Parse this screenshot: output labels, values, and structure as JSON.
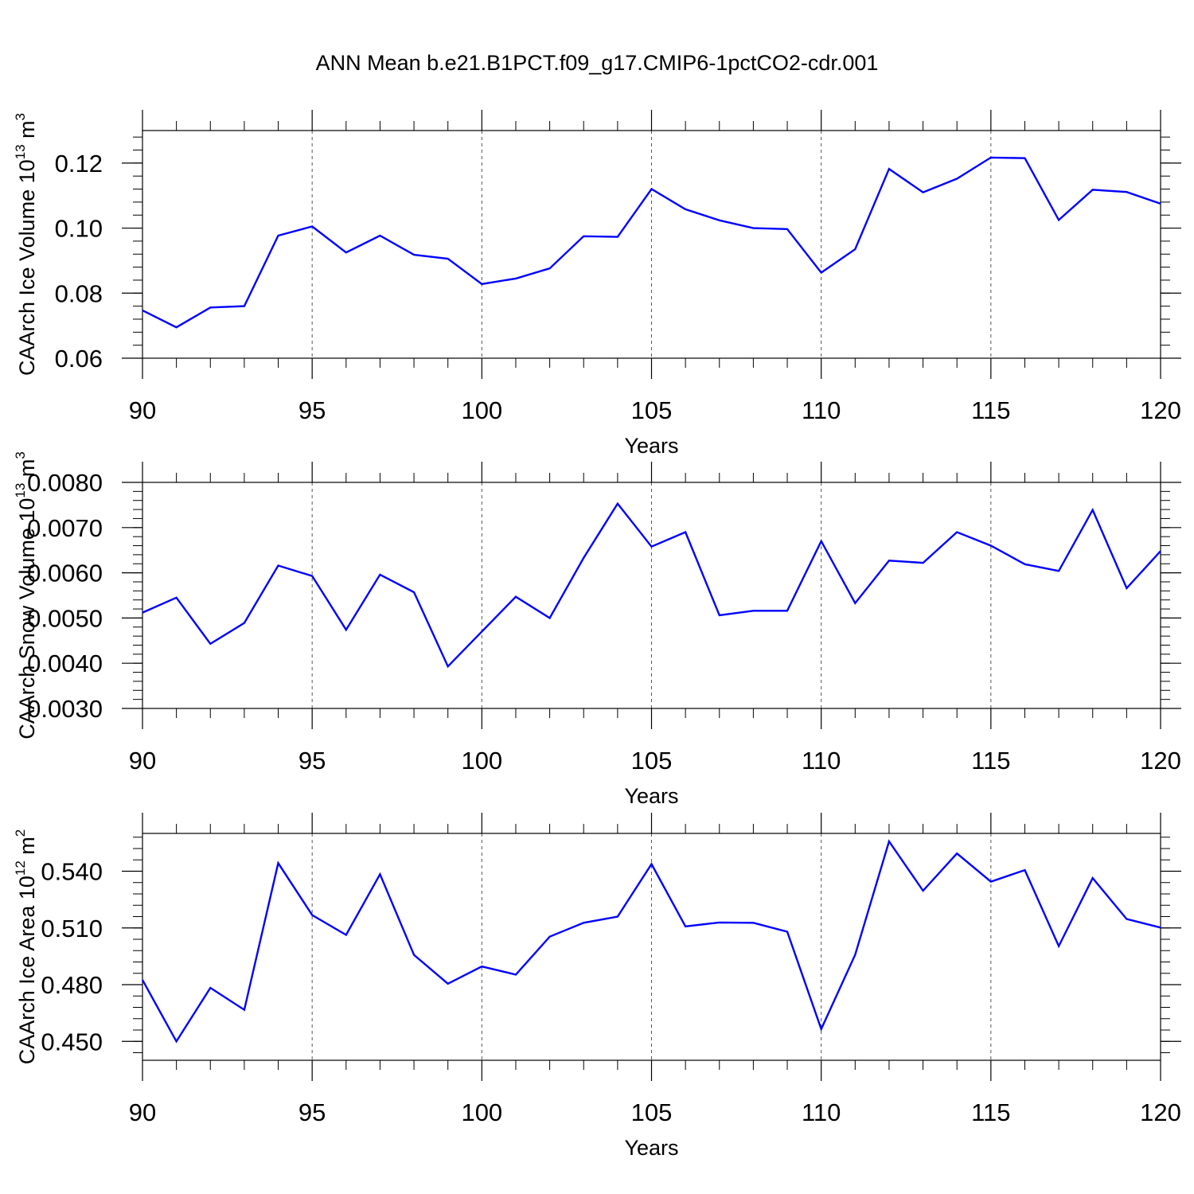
{
  "title": "ANN Mean b.e21.B1PCT.f09_g17.CMIP6-1pctCO2-cdr.001",
  "colors": {
    "line": "#0000ff",
    "axes": "#000000",
    "grid": "#555555"
  },
  "chart_data": [
    {
      "type": "line",
      "xlabel": "Years",
      "ylabel": {
        "text": "CAArch Ice Volume 10",
        "sup": "13",
        "unit": " m",
        "unit_sup": "3"
      },
      "xlim": [
        90,
        120
      ],
      "ylim": [
        0.06,
        0.13
      ],
      "xticks": [
        "90",
        "95",
        "100",
        "105",
        "110",
        "115",
        "120"
      ],
      "yticks": [
        "0.06",
        "0.08",
        "0.10",
        "0.12"
      ],
      "grid": "dashed vertical lines at major x ticks",
      "x": [
        90,
        91,
        92,
        93,
        94,
        95,
        96,
        97,
        98,
        99,
        100,
        101,
        102,
        103,
        104,
        105,
        106,
        107,
        108,
        109,
        110,
        111,
        112,
        113,
        114,
        115,
        116,
        117,
        118,
        119,
        120
      ],
      "series": [
        {
          "values": [
            0.0747,
            0.0695,
            0.0756,
            0.076,
            0.0977,
            0.1005,
            0.0925,
            0.0977,
            0.0918,
            0.0906,
            0.0828,
            0.0845,
            0.0876,
            0.0975,
            0.0973,
            0.112,
            0.1058,
            0.1024,
            0.1,
            0.0997,
            0.0863,
            0.0935,
            0.1182,
            0.111,
            0.1152,
            0.1217,
            0.1215,
            0.1025,
            0.1118,
            0.1111,
            0.1075
          ]
        }
      ]
    },
    {
      "type": "line",
      "xlabel": "Years",
      "ylabel": {
        "text": "CAArch Snow Volume 10",
        "sup": "13",
        "unit": " m",
        "unit_sup": "3"
      },
      "xlim": [
        90,
        120
      ],
      "ylim": [
        0.003,
        0.008
      ],
      "xticks": [
        "90",
        "95",
        "100",
        "105",
        "110",
        "115",
        "120"
      ],
      "yticks": [
        "0.0030",
        "0.0040",
        "0.0050",
        "0.0060",
        "0.0070",
        "0.0080"
      ],
      "grid": "dashed vertical lines at major x ticks",
      "x": [
        90,
        91,
        92,
        93,
        94,
        95,
        96,
        97,
        98,
        99,
        100,
        101,
        102,
        103,
        104,
        105,
        106,
        107,
        108,
        109,
        110,
        111,
        112,
        113,
        114,
        115,
        116,
        117,
        118,
        119,
        120
      ],
      "series": [
        {
          "values": [
            0.00512,
            0.00545,
            0.00443,
            0.00489,
            0.00616,
            0.00593,
            0.00474,
            0.00596,
            0.00557,
            0.00393,
            0.0047,
            0.00547,
            0.005,
            0.00633,
            0.00753,
            0.00658,
            0.0069,
            0.00506,
            0.00516,
            0.00516,
            0.0067,
            0.00533,
            0.00627,
            0.00622,
            0.0069,
            0.0066,
            0.00619,
            0.00604,
            0.00739,
            0.00566,
            0.00648
          ]
        }
      ]
    },
    {
      "type": "line",
      "xlabel": "Years",
      "ylabel": {
        "text": "CAArch Ice Area 10",
        "sup": "12",
        "unit": " m",
        "unit_sup": "2"
      },
      "xlim": [
        90,
        120
      ],
      "ylim": [
        0.44,
        0.56
      ],
      "xticks": [
        "90",
        "95",
        "100",
        "105",
        "110",
        "115",
        "120"
      ],
      "yticks": [
        "0.450",
        "0.480",
        "0.510",
        "0.540"
      ],
      "grid": "dashed vertical lines at major x ticks",
      "x": [
        90,
        91,
        92,
        93,
        94,
        95,
        96,
        97,
        98,
        99,
        100,
        101,
        102,
        103,
        104,
        105,
        106,
        107,
        108,
        109,
        110,
        111,
        112,
        113,
        114,
        115,
        116,
        117,
        118,
        119,
        120
      ],
      "series": [
        {
          "values": [
            0.4825,
            0.45,
            0.4783,
            0.4667,
            0.5443,
            0.5168,
            0.5063,
            0.5384,
            0.4957,
            0.4805,
            0.4896,
            0.4853,
            0.5054,
            0.5127,
            0.516,
            0.5438,
            0.5108,
            0.5129,
            0.5127,
            0.508,
            0.4565,
            0.4958,
            0.5558,
            0.5297,
            0.5494,
            0.5345,
            0.5406,
            0.5004,
            0.5364,
            0.5147,
            0.5102
          ]
        }
      ]
    }
  ]
}
